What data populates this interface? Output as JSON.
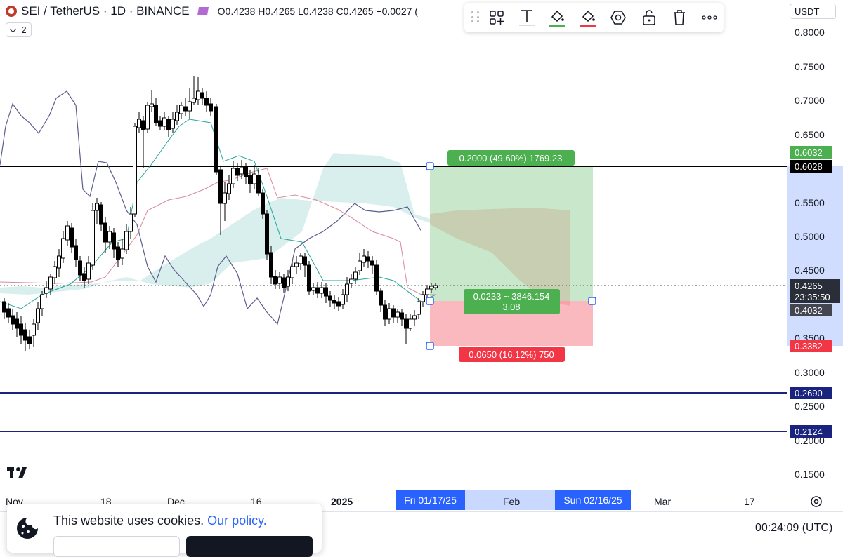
{
  "header": {
    "symbol": "SEI / TetherUS · 1D · BINANCE",
    "ohlc": "O0.4238  H0.4265  L0.4238  C0.4265  +0.0027 (",
    "indicator_count": "2"
  },
  "currency_label": "USDT",
  "price_axis": {
    "ticks": [
      "0.8000",
      "0.7500",
      "0.7000",
      "0.6500",
      "0.5500",
      "0.5000",
      "0.4500",
      "0.3500",
      "0.3000",
      "0.2500",
      "0.2000",
      "0.1500"
    ],
    "labels": [
      {
        "text": "0.6032",
        "bg": "#4caf50",
        "fg": "#ffffff"
      },
      {
        "text": "0.6028",
        "bg": "#000000",
        "fg": "#ffffff"
      },
      {
        "text": "0.4265",
        "bg": "#2a2e39",
        "fg": "#ffffff"
      },
      {
        "text": "23:35:50",
        "bg": "#2a2e39",
        "fg": "#ffffff"
      },
      {
        "text": "0.4032",
        "bg": "#434651",
        "fg": "#ffffff"
      },
      {
        "text": "0.3382",
        "bg": "#f23645",
        "fg": "#ffffff"
      },
      {
        "text": "0.2690",
        "bg": "#1a237e",
        "fg": "#ffffff"
      },
      {
        "text": "0.2124",
        "bg": "#1a237e",
        "fg": "#ffffff"
      }
    ]
  },
  "time_axis": {
    "labels": [
      "Nov",
      "18",
      "Dec",
      "16",
      "2025",
      "Feb",
      "Mar",
      "17"
    ],
    "range_start": "Fri 01/17/25",
    "range_end": "Sun 02/16/25"
  },
  "position_tool": {
    "target_label": "0.2000 (49.60%) 1769.23",
    "entry_label_1": "0.0233 ~ 3846.154",
    "entry_label_2": "3.08",
    "stop_label": "0.0650 (16.12%) 750"
  },
  "cookie_banner": {
    "text": "This website uses cookies.",
    "link": "Our policy."
  },
  "clock": "00:24:09 (UTC)",
  "toolbar_icons": [
    "add-template-icon",
    "text-icon",
    "fill-color-icon",
    "line-color-icon",
    "settings-icon",
    "lock-icon",
    "trash-icon",
    "more-icon"
  ],
  "colors": {
    "up": "#ffffff",
    "down": "#000000",
    "target_zone": "#4caf50",
    "stop_zone": "#f23645",
    "cloud": "#26a69a",
    "hline_black": "#000000",
    "hline_blue": "#1a237e",
    "accent": "#2962ff"
  }
}
